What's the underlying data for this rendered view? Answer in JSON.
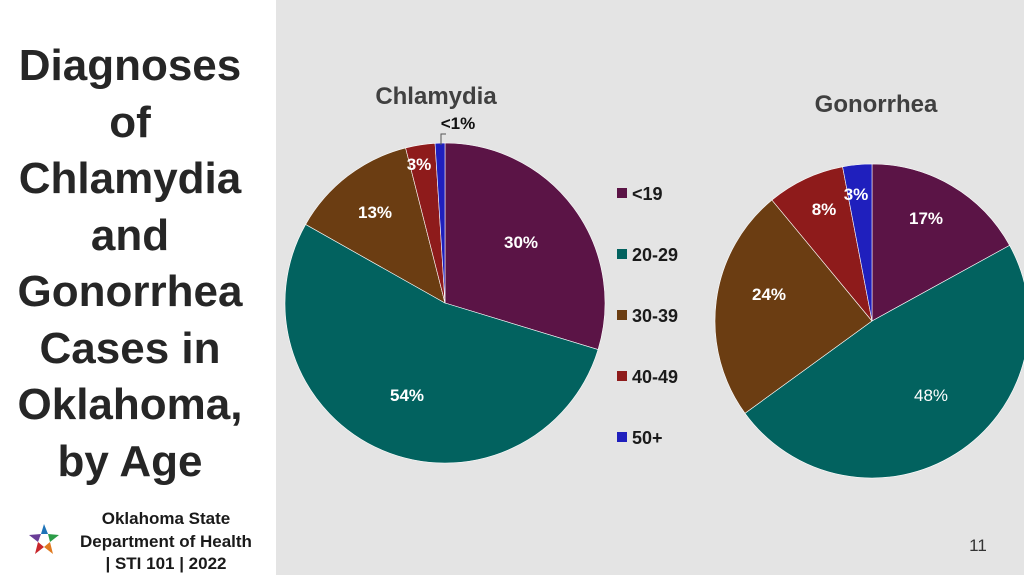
{
  "slide": {
    "title": "Diagnoses\nof\nChlamydia\nand\nGonorrhea\nCases in\nOklahoma,\nby Age",
    "footer": "Oklahoma State\nDepartment of Health\n| STI 101 | 2022",
    "page_number": "11"
  },
  "chart_data": [
    {
      "type": "pie",
      "title": "Chlamydia",
      "categories": [
        "<19",
        "20-29",
        "30-39",
        "40-49",
        "50+"
      ],
      "values": [
        30,
        54,
        13,
        3,
        1
      ],
      "labels": [
        "30%",
        "54%",
        "13%",
        "3%",
        "<1%"
      ],
      "colors": [
        "#5b1446",
        "#02625f",
        "#6b3d12",
        "#8e1b1b",
        "#1f1fbd"
      ],
      "legend": "right"
    },
    {
      "type": "pie",
      "title": "Gonorrhea",
      "categories": [
        "<19",
        "20-29",
        "30-39",
        "40-49",
        "50+"
      ],
      "values": [
        17,
        48,
        24,
        8,
        3
      ],
      "labels": [
        "17%",
        "48%",
        "24%",
        "8%",
        "3%"
      ],
      "colors": [
        "#5b1446",
        "#02625f",
        "#6b3d12",
        "#8e1b1b",
        "#1f1fbd"
      ]
    }
  ]
}
